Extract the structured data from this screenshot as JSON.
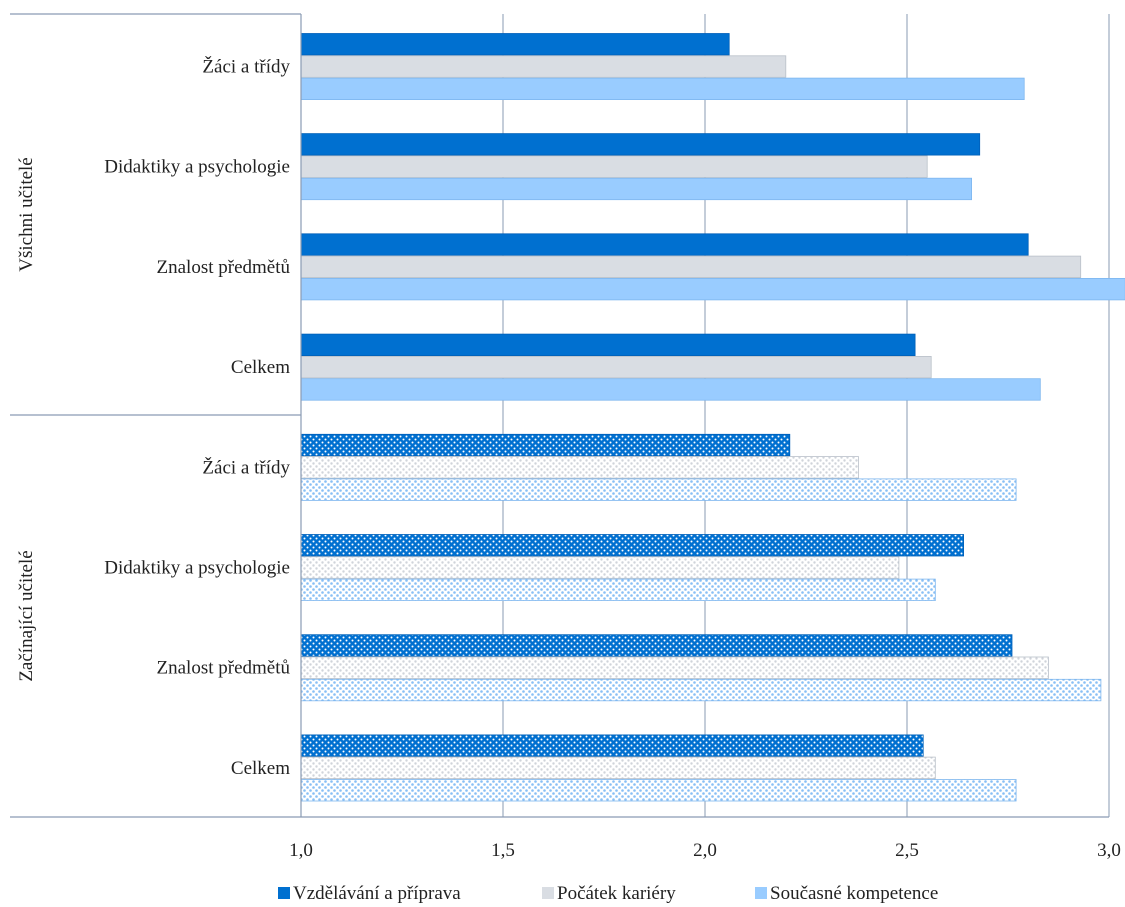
{
  "chart_data": {
    "type": "bar",
    "orientation": "horizontal",
    "xlim": [
      1.0,
      3.0
    ],
    "x_ticks": [
      "1,0",
      "1,5",
      "2,0",
      "2,5",
      "3,0"
    ],
    "x_tick_values": [
      1.0,
      1.5,
      2.0,
      2.5,
      3.0
    ],
    "grid": "vertical",
    "legend_position": "bottom",
    "series": [
      {
        "name": "Vzdělávání a příprava",
        "color": "#0070d0"
      },
      {
        "name": "Počátek kariéry",
        "color": "#d9dde3"
      },
      {
        "name": "Současné kompetence",
        "color": "#99ccff"
      }
    ],
    "groups": [
      {
        "name": "Všichni učitelé",
        "pattern": false,
        "categories": [
          {
            "label": "Žáci a třídy",
            "values": [
              2.06,
              2.2,
              2.79
            ]
          },
          {
            "label": "Didaktiky a psychologie",
            "values": [
              2.68,
              2.55,
              2.66
            ]
          },
          {
            "label": "Znalost předmětů",
            "values": [
              2.8,
              2.93,
              3.04
            ]
          },
          {
            "label": "Celkem",
            "values": [
              2.52,
              2.56,
              2.83
            ]
          }
        ]
      },
      {
        "name": "Začínající učitelé",
        "pattern": true,
        "categories": [
          {
            "label": "Žáci a třídy",
            "values": [
              2.21,
              2.38,
              2.77
            ]
          },
          {
            "label": "Didaktiky a psychologie",
            "values": [
              2.64,
              2.48,
              2.57
            ]
          },
          {
            "label": "Znalost předmětů",
            "values": [
              2.76,
              2.85,
              2.98
            ]
          },
          {
            "label": "Celkem",
            "values": [
              2.54,
              2.57,
              2.77
            ]
          }
        ]
      }
    ]
  }
}
